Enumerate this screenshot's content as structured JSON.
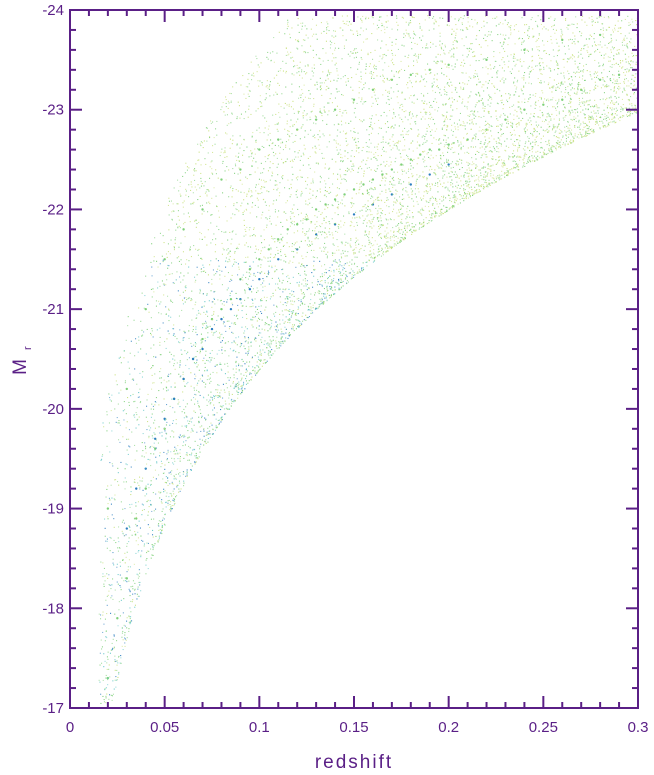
{
  "chart_data": {
    "type": "scatter",
    "title": "",
    "xlabel": "redshift",
    "ylabel": "M",
    "ylabel_subscript": "r",
    "xlim": [
      0,
      0.3
    ],
    "ylim": [
      -17,
      -24
    ],
    "y_axis_inverted": true,
    "grid": false,
    "legend": "none",
    "x_ticks": [
      {
        "value": 0,
        "label": "0"
      },
      {
        "value": 0.05,
        "label": "0.05"
      },
      {
        "value": 0.1,
        "label": "0.1"
      },
      {
        "value": 0.15,
        "label": "0.15"
      },
      {
        "value": 0.2,
        "label": "0.2"
      },
      {
        "value": 0.25,
        "label": "0.25"
      },
      {
        "value": 0.3,
        "label": "0.3"
      }
    ],
    "y_ticks": [
      {
        "value": -17,
        "label": "-17"
      },
      {
        "value": -18,
        "label": "-18"
      },
      {
        "value": -19,
        "label": "-19"
      },
      {
        "value": -20,
        "label": "-20"
      },
      {
        "value": -21,
        "label": "-21"
      },
      {
        "value": -22,
        "label": "-22"
      },
      {
        "value": -23,
        "label": "-23"
      },
      {
        "value": -24,
        "label": "-24"
      }
    ],
    "series": [
      {
        "color": "#7fd07a",
        "x": [
          0.02,
          0.025,
          0.03,
          0.035,
          0.04,
          0.045,
          0.05,
          0.055,
          0.06,
          0.065,
          0.07,
          0.075,
          0.08,
          0.085,
          0.09,
          0.095,
          0.1,
          0.105,
          0.11,
          0.115,
          0.12,
          0.125,
          0.13,
          0.135,
          0.14,
          0.145,
          0.15,
          0.155,
          0.16,
          0.165,
          0.17,
          0.175,
          0.18,
          0.185,
          0.19,
          0.195,
          0.2,
          0.21,
          0.22,
          0.23,
          0.24,
          0.25,
          0.26,
          0.27,
          0.28,
          0.29,
          0.3,
          0.02,
          0.03,
          0.04,
          0.05,
          0.06,
          0.07,
          0.08,
          0.09,
          0.1,
          0.11,
          0.12,
          0.13,
          0.14,
          0.15,
          0.16,
          0.17,
          0.18,
          0.19,
          0.2,
          0.22,
          0.24,
          0.26,
          0.28,
          0.3
        ],
        "y": [
          -17.3,
          -17.9,
          -18.3,
          -18.9,
          -19.2,
          -19.6,
          -19.8,
          -20.1,
          -20.3,
          -20.5,
          -20.7,
          -20.9,
          -21.0,
          -21.1,
          -21.3,
          -21.4,
          -21.5,
          -21.6,
          -21.7,
          -21.8,
          -21.85,
          -21.9,
          -22.0,
          -22.05,
          -22.1,
          -22.15,
          -22.2,
          -22.25,
          -22.3,
          -22.35,
          -22.4,
          -22.45,
          -22.5,
          -22.55,
          -22.6,
          -22.6,
          -22.65,
          -22.7,
          -22.8,
          -22.9,
          -23.0,
          -23.05,
          -23.1,
          -23.2,
          -23.3,
          -23.35,
          -23.4,
          -19.0,
          -20.2,
          -21.0,
          -21.5,
          -21.8,
          -22.0,
          -22.3,
          -22.4,
          -22.6,
          -22.7,
          -22.8,
          -22.9,
          -23.0,
          -23.1,
          -23.2,
          -23.3,
          -23.35,
          -23.4,
          -23.45,
          -23.5,
          -23.6,
          -23.7,
          -23.75,
          -23.8
        ]
      },
      {
        "color": "#2e7fc0",
        "x": [
          0.03,
          0.035,
          0.04,
          0.045,
          0.05,
          0.055,
          0.06,
          0.065,
          0.07,
          0.075,
          0.08,
          0.085,
          0.09,
          0.095,
          0.1,
          0.11,
          0.12,
          0.13,
          0.14,
          0.15,
          0.16,
          0.17,
          0.18,
          0.19,
          0.2
        ],
        "y": [
          -18.8,
          -19.2,
          -19.4,
          -19.7,
          -19.9,
          -20.1,
          -20.3,
          -20.5,
          -20.6,
          -20.8,
          -20.9,
          -21.0,
          -21.1,
          -21.2,
          -21.3,
          -21.5,
          -21.6,
          -21.75,
          -21.85,
          -21.95,
          -22.05,
          -22.15,
          -22.25,
          -22.35,
          -22.45
        ]
      }
    ]
  },
  "colors": {
    "frame": "#5a1f86",
    "text": "#5a1f86",
    "dots_green": "#7fd07a",
    "dots_yellow": "#c8e07a",
    "dots_blue": "#2e7fc0",
    "dots_cyan": "#63c7c8"
  }
}
